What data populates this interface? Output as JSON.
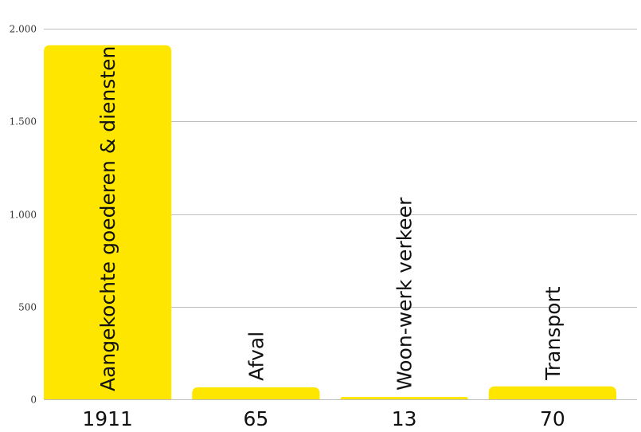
{
  "colors": {
    "bar": "#FFE600",
    "grid": "#BDBDBD",
    "text": "#111111"
  },
  "chart_data": {
    "type": "bar",
    "title": "",
    "xlabel": "",
    "ylabel": "",
    "grid": true,
    "legend": "none",
    "ylim": [
      0,
      2000
    ],
    "y_ticks": [
      0,
      500,
      1000,
      1500,
      2000
    ],
    "y_tick_labels": [
      "0",
      "500",
      "1.000",
      "1.500",
      "2.000"
    ],
    "categories": [
      "Aangekochte goederen & diensten",
      "Afval",
      "Woon-werk verkeer",
      "Transport"
    ],
    "values": [
      1911,
      65,
      13,
      70
    ],
    "value_labels": [
      "1911",
      "65",
      "13",
      "70"
    ]
  }
}
